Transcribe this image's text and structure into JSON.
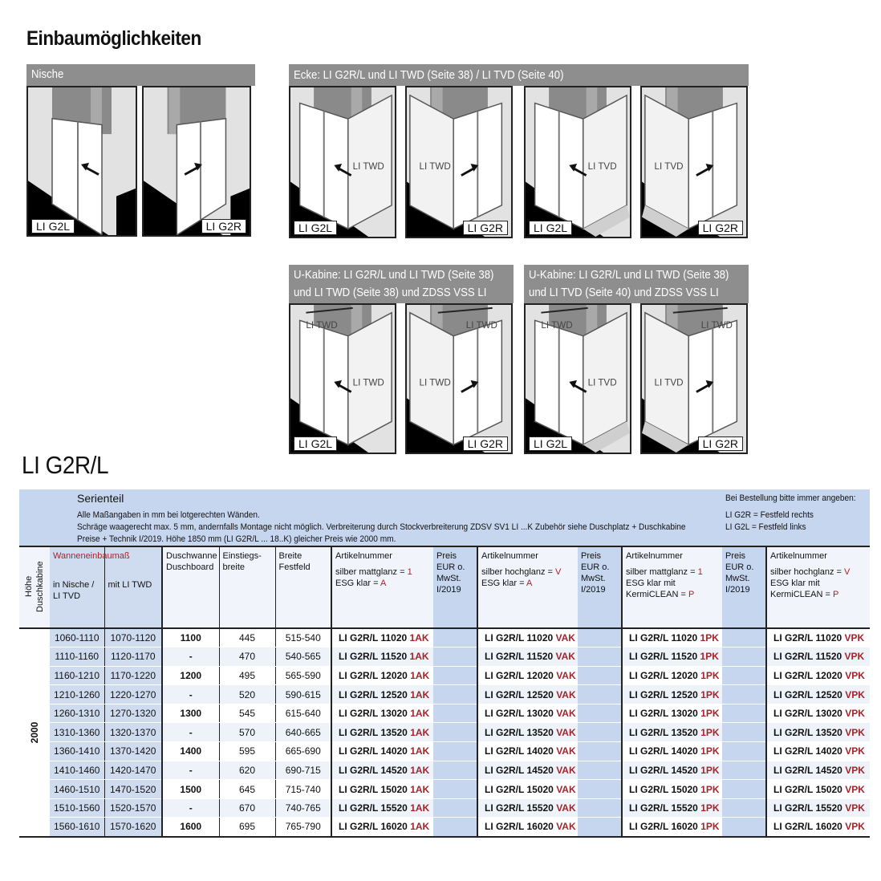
{
  "title": "Einbaumöglichkeiten",
  "sections": {
    "nische": {
      "label": "Nische",
      "panels": [
        {
          "label": "LI G2L",
          "side": "L",
          "type": "niche"
        },
        {
          "label": "LI G2R",
          "side": "R",
          "type": "niche"
        }
      ]
    },
    "ecke": {
      "label": "Ecke: LI G2R/L und LI TWD (Seite 38) / LI TVD (Seite 40)",
      "panels": [
        {
          "label": "LI G2L",
          "side": "L",
          "type": "corner",
          "extra": "LI TWD"
        },
        {
          "label": "LI G2R",
          "side": "R",
          "type": "corner",
          "extra": "LI TWD"
        },
        {
          "label": "LI G2L",
          "side": "L",
          "type": "corner",
          "extra": "LI TVD",
          "tray": true
        },
        {
          "label": "LI G2R",
          "side": "R",
          "type": "corner",
          "extra": "LI TVD",
          "tray": true
        }
      ]
    },
    "u1": {
      "label1": "U-Kabine: LI G2R/L und LI TWD (Seite 38)",
      "label2": "und LI TWD (Seite 38) und ZDSS VSS LI",
      "panels": [
        {
          "label": "LI G2L",
          "side": "L",
          "type": "u",
          "extra": "LI TWD",
          "top": "LI TWD"
        },
        {
          "label": "LI G2R",
          "side": "R",
          "type": "u",
          "extra": "LI TWD",
          "top": "LI TWD"
        }
      ]
    },
    "u2": {
      "label1": "U-Kabine: LI G2R/L und LI TWD (Seite 38)",
      "label2": "und LI TVD (Seite 40) und ZDSS VSS LI",
      "panels": [
        {
          "label": "LI G2L",
          "side": "L",
          "type": "u",
          "extra": "LI TVD",
          "top": "LI TWD",
          "tray": true
        },
        {
          "label": "LI G2R",
          "side": "R",
          "type": "u",
          "extra": "LI TVD",
          "top": "LI TWD",
          "tray": true
        }
      ]
    }
  },
  "product_title": "LI G2R/L",
  "table": {
    "serienteil": "Serienteil",
    "notes": [
      "Alle Maßangaben in mm bei lotgerechten Wänden.",
      "Schräge waagerecht max. 5 mm, andernfalls Montage nicht möglich. Verbreiterung durch Stockverbreiterung ZDSV SV1 LI ...K Zubehör siehe Duschplatz + Duschkabine",
      "Preise + Technik I/2019. Höhe 1850 mm (LI G2R/L ... 18..K) gleicher Preis wie 2000 mm."
    ],
    "order_note": "Bei Bestellung bitte immer angeben:",
    "order_r": "LI G2R = Festfeld rechts",
    "order_l": "LI G2L = Festfeld links",
    "headers": {
      "hoehe": "Höhe Duschkabine",
      "wanne": "Wanneneinbaumaß",
      "nische": "in Nische / LI TVD",
      "twd": "mit LI TWD",
      "duschwanne": "Duschwanne Duschboard",
      "einstieg": "Einstiegs-breite",
      "festfeld": "Breite Festfeld",
      "artikel": "Artikelnummer",
      "preis": "Preis EUR o. MwSt. I/2019",
      "variants": [
        {
          "l1": "silber mattglanz = ",
          "c1": "1",
          "l2": "ESG klar = ",
          "c2": "A",
          "l3": ""
        },
        {
          "l1": "silber hochglanz = ",
          "c1": "V",
          "l2": "ESG klar = ",
          "c2": "A",
          "l3": ""
        },
        {
          "l1": "silber mattglanz = ",
          "c1": "1",
          "l2": "ESG klar mit",
          "c2": "",
          "l3": "KermiCLEAN = ",
          "c3": "P"
        },
        {
          "l1": "silber hochglanz = ",
          "c1": "V",
          "l2": "ESG klar mit",
          "c2": "",
          "l3": "KermiCLEAN = ",
          "c3": "P"
        }
      ]
    },
    "hoehe_value": "2000",
    "article_prefix": "LI G2R/L",
    "suffixes": [
      "1AK",
      "VAK",
      "1PK",
      "VPK"
    ],
    "rows": [
      [
        "1060-1110",
        "1070-1120",
        "1100",
        "445",
        "515-540",
        "11020"
      ],
      [
        "1110-1160",
        "1120-1170",
        "-",
        "470",
        "540-565",
        "11520"
      ],
      [
        "1160-1210",
        "1170-1220",
        "1200",
        "495",
        "565-590",
        "12020"
      ],
      [
        "1210-1260",
        "1220-1270",
        "-",
        "520",
        "590-615",
        "12520"
      ],
      [
        "1260-1310",
        "1270-1320",
        "1300",
        "545",
        "615-640",
        "13020"
      ],
      [
        "1310-1360",
        "1320-1370",
        "-",
        "570",
        "640-665",
        "13520"
      ],
      [
        "1360-1410",
        "1370-1420",
        "1400",
        "595",
        "665-690",
        "14020"
      ],
      [
        "1410-1460",
        "1420-1470",
        "-",
        "620",
        "690-715",
        "14520"
      ],
      [
        "1460-1510",
        "1470-1520",
        "1500",
        "645",
        "715-740",
        "15020"
      ],
      [
        "1510-1560",
        "1520-1570",
        "-",
        "670",
        "740-765",
        "15520"
      ],
      [
        "1560-1610",
        "1570-1620",
        "1600",
        "695",
        "765-790",
        "16020"
      ]
    ]
  }
}
